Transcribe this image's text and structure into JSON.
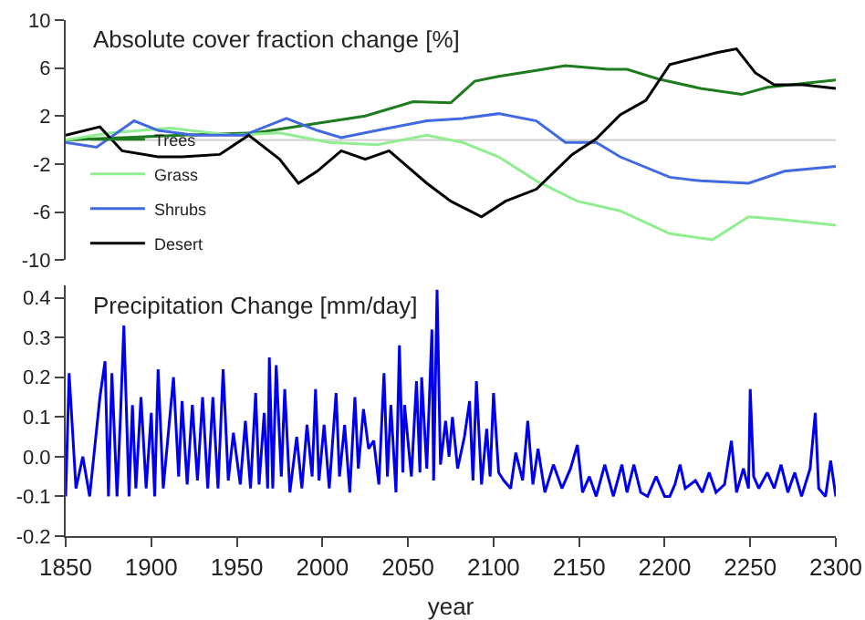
{
  "chart_data": [
    {
      "type": "line",
      "title": "Absolute cover fraction change [%]",
      "xlim": [
        1850,
        2300
      ],
      "ylim": [
        -10,
        10
      ],
      "yticks": [
        -10,
        -6,
        -2,
        2,
        6,
        10
      ],
      "tick_labels": "y",
      "legend": "bottom left",
      "marker": "none",
      "line_style": "solid",
      "ref_lines": [
        {
          "axis": "y",
          "value": 0,
          "label": null,
          "color": "#d3d3d3"
        }
      ],
      "series": [
        {
          "name": "Trees",
          "color": "#1e7b1e",
          "x": [
            1850,
            1883,
            1918,
            1961,
            1997,
            2025,
            2053,
            2075,
            2089,
            2103,
            2125,
            2142,
            2167,
            2178,
            2196,
            2221,
            2245,
            2260,
            2300
          ],
          "values": [
            0,
            0.2,
            0.4,
            0.6,
            1.4,
            2.0,
            3.2,
            3.1,
            4.9,
            5.3,
            5.8,
            6.2,
            5.9,
            5.9,
            5.1,
            4.3,
            3.8,
            4.4,
            5.0
          ]
        },
        {
          "name": "Grass",
          "color": "#90ee90",
          "x": [
            1850,
            1876,
            1911,
            1947,
            1975,
            2004,
            2032,
            2061,
            2082,
            2103,
            2125,
            2149,
            2174,
            2203,
            2228,
            2249,
            2267,
            2300
          ],
          "values": [
            0,
            0.6,
            1.0,
            0.4,
            0.6,
            -0.2,
            -0.4,
            0.4,
            -0.2,
            -1.4,
            -3.4,
            -5.1,
            -5.9,
            -7.8,
            -8.3,
            -6.4,
            -6.6,
            -7.1
          ]
        },
        {
          "name": "Shrubs",
          "color": "#4169e1",
          "x": [
            1850,
            1868,
            1890,
            1904,
            1925,
            1954,
            1979,
            1997,
            2011,
            2032,
            2061,
            2082,
            2103,
            2125,
            2142,
            2160,
            2174,
            2203,
            2221,
            2249,
            2270,
            2300
          ],
          "values": [
            -0.2,
            -0.6,
            1.6,
            0.8,
            0.4,
            0.4,
            1.8,
            0.8,
            0.2,
            0.8,
            1.6,
            1.8,
            2.2,
            1.6,
            -0.2,
            -0.2,
            -1.4,
            -3.1,
            -3.4,
            -3.6,
            -2.6,
            -2.2
          ]
        },
        {
          "name": "Desert",
          "color": "#000000",
          "x": [
            1850,
            1870,
            1883,
            1904,
            1918,
            1940,
            1957,
            1975,
            1986,
            1997,
            2011,
            2025,
            2039,
            2061,
            2075,
            2093,
            2107,
            2125,
            2146,
            2160,
            2174,
            2189,
            2203,
            2217,
            2231,
            2242,
            2253,
            2264,
            2281,
            2300
          ],
          "values": [
            0.4,
            1.1,
            -0.9,
            -1.4,
            -1.4,
            -1.2,
            0.4,
            -1.6,
            -3.6,
            -2.6,
            -0.9,
            -1.6,
            -0.9,
            -3.6,
            -5.1,
            -6.4,
            -5.1,
            -4.1,
            -1.2,
            0.1,
            2.1,
            3.3,
            6.3,
            6.8,
            7.3,
            7.6,
            5.6,
            4.6,
            4.6,
            4.3
          ]
        }
      ]
    },
    {
      "type": "line",
      "title": "Precipitation Change [mm/day]",
      "xlabel": "year",
      "xlim": [
        1850,
        2300
      ],
      "xticks": [
        1850,
        1900,
        1950,
        2000,
        2050,
        2100,
        2150,
        2200,
        2250,
        2300
      ],
      "ylim": [
        -0.2,
        0.43
      ],
      "yticks": [
        -0.2,
        -0.1,
        {
          "value": 0,
          "label": "0.0"
        },
        0.1,
        0.2,
        0.3,
        0.4
      ],
      "legend": false,
      "marker": "none",
      "line_style": "solid",
      "series": [
        {
          "color": "#0000ee",
          "x": [
            1850,
            1852,
            1856,
            1860,
            1864,
            1870,
            1873,
            1875,
            1877,
            1880,
            1882,
            1884,
            1887,
            1889,
            1891,
            1894,
            1897,
            1900,
            1902,
            1904,
            1907,
            1910,
            1913,
            1916,
            1918,
            1921,
            1924,
            1927,
            1930,
            1933,
            1936,
            1939,
            1942,
            1945,
            1948,
            1952,
            1955,
            1958,
            1961,
            1963,
            1966,
            1968,
            1969,
            1971,
            1973,
            1976,
            1978,
            1981,
            1985,
            1988,
            1991,
            1994,
            1996,
            1998,
            2001,
            2004,
            2008,
            2010,
            2013,
            2016,
            2019,
            2021,
            2024,
            2027,
            2030,
            2033,
            2036,
            2038,
            2040,
            2043,
            2045,
            2047,
            2048,
            2052,
            2055,
            2057,
            2058,
            2061,
            2064,
            2065,
            2067,
            2069,
            2072,
            2074,
            2076,
            2079,
            2083,
            2086,
            2088,
            2090,
            2093,
            2096,
            2098,
            2100,
            2103,
            2106,
            2110,
            2113,
            2117,
            2120,
            2123,
            2126,
            2130,
            2135,
            2140,
            2145,
            2149,
            2152,
            2156,
            2160,
            2165,
            2170,
            2175,
            2178,
            2182,
            2186,
            2190,
            2195,
            2200,
            2203,
            2206,
            2209,
            2212,
            2218,
            2222,
            2226,
            2230,
            2235,
            2239,
            2242,
            2246,
            2249,
            2250,
            2252,
            2255,
            2260,
            2264,
            2268,
            2272,
            2276,
            2280,
            2285,
            2288,
            2290,
            2294,
            2297,
            2300
          ],
          "values": [
            -0.1,
            0.21,
            -0.08,
            0.0,
            -0.1,
            0.15,
            0.24,
            -0.1,
            0.21,
            -0.1,
            0.1,
            0.33,
            -0.1,
            0.13,
            -0.08,
            0.15,
            -0.08,
            0.11,
            -0.1,
            0.22,
            -0.08,
            0.06,
            0.2,
            -0.05,
            0.14,
            -0.07,
            0.13,
            -0.06,
            0.15,
            -0.08,
            0.15,
            -0.08,
            0.22,
            -0.06,
            0.06,
            -0.07,
            0.09,
            -0.08,
            0.16,
            -0.07,
            0.11,
            -0.08,
            0.25,
            -0.08,
            0.23,
            -0.05,
            0.17,
            -0.09,
            0.05,
            -0.08,
            0.08,
            -0.05,
            0.17,
            -0.06,
            0.08,
            -0.08,
            0.16,
            -0.05,
            0.08,
            -0.09,
            0.15,
            -0.03,
            0.12,
            0.02,
            0.04,
            -0.07,
            0.21,
            -0.05,
            0.13,
            -0.09,
            0.28,
            -0.04,
            0.13,
            -0.05,
            0.19,
            -0.04,
            0.2,
            -0.03,
            0.32,
            -0.06,
            0.42,
            -0.02,
            0.09,
            0.0,
            0.1,
            -0.03,
            0.05,
            0.14,
            -0.06,
            0.19,
            -0.07,
            0.07,
            -0.05,
            0.16,
            -0.04,
            -0.06,
            -0.08,
            0.01,
            -0.06,
            0.09,
            -0.07,
            0.02,
            -0.09,
            -0.02,
            -0.08,
            -0.03,
            0.03,
            -0.09,
            -0.05,
            -0.1,
            -0.02,
            -0.1,
            -0.02,
            -0.09,
            -0.02,
            -0.09,
            -0.1,
            -0.05,
            -0.1,
            -0.1,
            -0.07,
            -0.02,
            -0.08,
            -0.06,
            -0.09,
            -0.04,
            -0.09,
            -0.07,
            0.04,
            -0.09,
            -0.03,
            -0.08,
            0.17,
            -0.05,
            -0.08,
            -0.04,
            -0.08,
            -0.02,
            -0.09,
            -0.04,
            -0.1,
            -0.03,
            0.11,
            -0.08,
            -0.1,
            -0.01,
            -0.1
          ]
        }
      ]
    }
  ]
}
